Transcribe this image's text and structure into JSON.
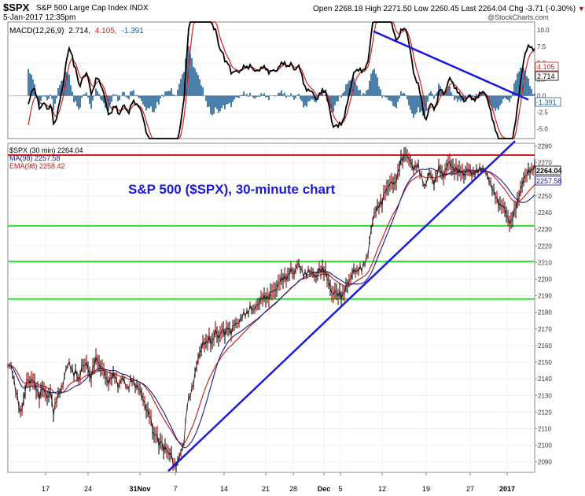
{
  "header": {
    "symbol": "$SPX",
    "name": "S&P 500 Large Cap Index INDX",
    "date": "5-Jan-2017 12:35pm",
    "quote": "Open 2268.18  High 2271.50  Low 2260.45  Last 2264.04  Chg -3.71 (-0.30%)",
    "brand": "@StockCharts.com",
    "chg_arrow": "▼"
  },
  "chart_data": [
    {
      "type": "line",
      "panel": "indicator",
      "legend_text": "MACD(12,26,9) 2.714, 4.105, -1.391",
      "legend_parts": [
        "MACD(12,26,9)",
        "2.714,",
        "4.105,",
        "-1.391"
      ],
      "yticks": [
        10.0,
        7.5,
        5.0,
        2.5,
        0.0,
        -2.5,
        -5.0
      ],
      "ytick_labels": [
        "10.0",
        "7.5",
        "5.0",
        "2.5",
        "0.0",
        "-2.5",
        "-5.0"
      ],
      "ylim": [
        -6.5,
        11.2
      ],
      "last_values": {
        "signal": 4.105,
        "macd": 2.714,
        "histogram": -1.391
      },
      "last_labels": {
        "signal": "4.105",
        "macd": "2.714",
        "histogram": "-1.391"
      },
      "colors": {
        "macd": "#000000",
        "signal": "#d42020",
        "histogram": "#1f5f95",
        "trendline": "#1a1adb"
      },
      "trendline": [
        [
          475,
          43
        ],
        [
          672,
          126
        ]
      ]
    },
    {
      "type": "line",
      "panel": "price",
      "title": "S&P 500 ($SPX), 30-minute chart",
      "legend": [
        {
          "label": "$SPX (30 min) 2264.04",
          "color": "#000000"
        },
        {
          "label": "MA(98) 2257.58",
          "color": "#1a1a8a"
        },
        {
          "label": "EMA(98) 2258.42",
          "color": "#c01818"
        }
      ],
      "yticks": [
        2090,
        2100,
        2110,
        2120,
        2130,
        2140,
        2150,
        2160,
        2170,
        2180,
        2190,
        2200,
        2210,
        2220,
        2230,
        2240,
        2250,
        2260,
        2270,
        2280
      ],
      "ylim": [
        2083.7,
        2281.7
      ],
      "last_labels": {
        "price": "2264.04",
        "ma": "2257.58"
      },
      "xticks": [
        "17",
        "24",
        "31Nov",
        "7",
        "14",
        "21",
        "28",
        "Dec",
        "5",
        "12",
        "19",
        "27",
        "2017"
      ],
      "horizontal_lines": [
        {
          "value": 2274.6,
          "color": "#d42020"
        },
        {
          "value": 2232.0,
          "color": "#33dd33"
        },
        {
          "value": 2210.6,
          "color": "#33dd33"
        },
        {
          "value": 2188.0,
          "color": "#33dd33"
        }
      ],
      "trendline": [
        [
          2084.5,
          2283.0
        ]
      ],
      "price_anchors": [
        [
          0,
          2148
        ],
        [
          5,
          2146
        ],
        [
          10,
          2134
        ],
        [
          16,
          2118
        ],
        [
          20,
          2128
        ],
        [
          24,
          2139
        ],
        [
          28,
          2137
        ],
        [
          32,
          2141
        ],
        [
          36,
          2134
        ],
        [
          40,
          2128
        ],
        [
          44,
          2136
        ],
        [
          48,
          2131
        ],
        [
          51,
          2126
        ],
        [
          54,
          2134
        ],
        [
          58,
          2120
        ],
        [
          63,
          2128
        ],
        [
          66,
          2133
        ],
        [
          70,
          2137
        ],
        [
          74,
          2145
        ],
        [
          78,
          2150
        ],
        [
          81,
          2147
        ],
        [
          84,
          2142
        ],
        [
          87,
          2144
        ],
        [
          90,
          2139
        ],
        [
          94,
          2148
        ],
        [
          98,
          2147
        ],
        [
          101,
          2150
        ],
        [
          105,
          2140
        ],
        [
          109,
          2147
        ],
        [
          113,
          2153
        ],
        [
          117,
          2148
        ],
        [
          121,
          2145
        ],
        [
          125,
          2140
        ],
        [
          129,
          2139
        ],
        [
          133,
          2141
        ],
        [
          137,
          2142
        ],
        [
          141,
          2135
        ],
        [
          145,
          2140
        ],
        [
          149,
          2138
        ],
        [
          153,
          2134
        ],
        [
          157,
          2139
        ],
        [
          161,
          2137
        ],
        [
          165,
          2136
        ],
        [
          169,
          2131
        ],
        [
          173,
          2127
        ],
        [
          177,
          2121
        ],
        [
          180,
          2118
        ],
        [
          183,
          2112
        ],
        [
          186,
          2106
        ],
        [
          189,
          2109
        ],
        [
          192,
          2099
        ],
        [
          195,
          2103
        ],
        [
          198,
          2098
        ],
        [
          201,
          2100
        ],
        [
          204,
          2093
        ],
        [
          207,
          2096
        ],
        [
          210,
          2091
        ],
        [
          213,
          2087
        ],
        [
          216,
          2089
        ],
        [
          220,
          2096
        ],
        [
          224,
          2103
        ],
        [
          228,
          2123
        ],
        [
          232,
          2131
        ],
        [
          236,
          2138
        ],
        [
          240,
          2147
        ],
        [
          244,
          2156
        ],
        [
          248,
          2162
        ],
        [
          252,
          2160
        ],
        [
          256,
          2165
        ],
        [
          260,
          2162
        ],
        [
          264,
          2168
        ],
        [
          268,
          2165
        ],
        [
          272,
          2170
        ],
        [
          276,
          2166
        ],
        [
          280,
          2172
        ],
        [
          284,
          2168
        ],
        [
          288,
          2172
        ],
        [
          292,
          2174
        ],
        [
          296,
          2176
        ],
        [
          300,
          2178
        ],
        [
          304,
          2180
        ],
        [
          308,
          2183
        ],
        [
          312,
          2180
        ],
        [
          316,
          2185
        ],
        [
          320,
          2186
        ],
        [
          324,
          2188
        ],
        [
          328,
          2190
        ],
        [
          332,
          2189
        ],
        [
          336,
          2192
        ],
        [
          340,
          2194
        ],
        [
          344,
          2197
        ],
        [
          348,
          2199
        ],
        [
          352,
          2202
        ],
        [
          356,
          2201
        ],
        [
          360,
          2205
        ],
        [
          364,
          2204
        ],
        [
          368,
          2209
        ],
        [
          372,
          2206
        ],
        [
          376,
          2204
        ],
        [
          380,
          2203
        ],
        [
          384,
          2204
        ],
        [
          388,
          2205
        ],
        [
          392,
          2200
        ],
        [
          396,
          2205
        ],
        [
          400,
          2207
        ],
        [
          404,
          2204
        ],
        [
          407,
          2198
        ],
        [
          410,
          2196
        ],
        [
          413,
          2190
        ],
        [
          416,
          2193
        ],
        [
          419,
          2189
        ],
        [
          422,
          2192
        ],
        [
          425,
          2190
        ],
        [
          428,
          2192
        ],
        [
          431,
          2195
        ],
        [
          434,
          2199
        ],
        [
          437,
          2203
        ],
        [
          440,
          2205
        ],
        [
          443,
          2203
        ],
        [
          447,
          2208
        ],
        [
          451,
          2206
        ],
        [
          455,
          2210
        ],
        [
          458,
          2216
        ],
        [
          461,
          2228
        ],
        [
          464,
          2234
        ],
        [
          467,
          2240
        ],
        [
          470,
          2244
        ],
        [
          473,
          2246
        ],
        [
          476,
          2245
        ],
        [
          479,
          2252
        ],
        [
          483,
          2256
        ],
        [
          487,
          2258
        ],
        [
          491,
          2256
        ],
        [
          495,
          2262
        ],
        [
          499,
          2270
        ],
        [
          503,
          2272
        ],
        [
          506,
          2277
        ],
        [
          509,
          2273
        ],
        [
          512,
          2270
        ],
        [
          515,
          2266
        ],
        [
          518,
          2268
        ],
        [
          521,
          2270
        ],
        [
          524,
          2263
        ],
        [
          527,
          2260
        ],
        [
          530,
          2256
        ],
        [
          533,
          2260
        ],
        [
          537,
          2264
        ],
        [
          541,
          2258
        ],
        [
          545,
          2262
        ],
        [
          549,
          2267
        ],
        [
          553,
          2262
        ],
        [
          557,
          2266
        ],
        [
          561,
          2270
        ],
        [
          565,
          2268
        ],
        [
          569,
          2266
        ],
        [
          573,
          2264
        ],
        [
          577,
          2266
        ],
        [
          581,
          2262
        ],
        [
          585,
          2266
        ],
        [
          589,
          2265
        ],
        [
          593,
          2263
        ],
        [
          597,
          2264
        ],
        [
          601,
          2268
        ],
        [
          605,
          2266
        ],
        [
          609,
          2262
        ],
        [
          613,
          2260
        ],
        [
          617,
          2253
        ],
        [
          621,
          2248
        ],
        [
          625,
          2246
        ],
        [
          629,
          2244
        ],
        [
          633,
          2240
        ],
        [
          637,
          2236
        ],
        [
          640,
          2234
        ],
        [
          643,
          2238
        ],
        [
          646,
          2243
        ],
        [
          650,
          2251
        ],
        [
          654,
          2256
        ],
        [
          658,
          2262
        ],
        [
          662,
          2266
        ],
        [
          666,
          2264
        ],
        [
          670,
          2268
        ],
        [
          673,
          2264
        ],
        [
          676,
          2262
        ],
        [
          680,
          2264
        ]
      ]
    }
  ]
}
